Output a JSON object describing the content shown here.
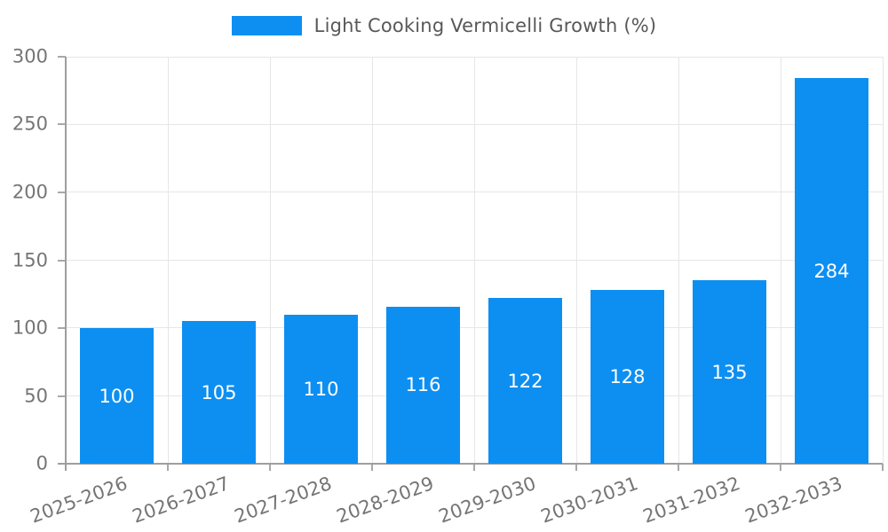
{
  "legend": {
    "label": "Light Cooking Vermicelli Growth (%)"
  },
  "chart_data": {
    "type": "bar",
    "title": "",
    "categories": [
      "2025-2026",
      "2026-2027",
      "2027-2028",
      "2028-2029",
      "2029-2030",
      "2030-2031",
      "2031-2032",
      "2032-2033"
    ],
    "series": [
      {
        "name": "Light Cooking Vermicelli Growth (%)",
        "values": [
          100,
          105,
          110,
          116,
          122,
          128,
          135,
          284
        ]
      }
    ],
    "ylabel": "",
    "xlabel": "",
    "ylim": [
      0,
      300
    ],
    "yticks": [
      0,
      50,
      100,
      150,
      200,
      250,
      300
    ],
    "grid": true,
    "legend_position": "top",
    "x_tick_rotation_deg": 20,
    "value_labels_inside_bars": true
  },
  "colors": {
    "bar": "#0d8ff2",
    "value_label": "#ffffff",
    "grid": "#e6e6e6",
    "axis": "#9e9e9e",
    "tick": "#a8a8a8",
    "tick_label": "#757575",
    "legend_text": "#58585a",
    "background": "#ffffff"
  }
}
